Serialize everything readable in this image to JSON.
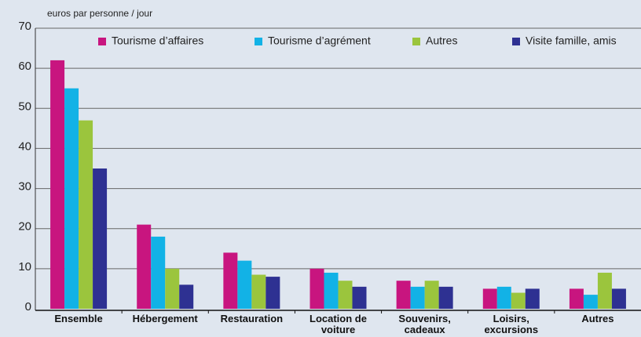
{
  "chart_data": {
    "type": "bar",
    "y_axis_label": "euros par personne / jour",
    "categories": [
      "Ensemble",
      "Hébergement",
      "Restauration",
      "Location de voiture",
      "Souvenirs, cadeaux",
      "Loisirs, excursions",
      "Autres"
    ],
    "series": [
      {
        "name": "Tourisme d’affaires",
        "color": "#c8157f",
        "values": [
          62,
          21,
          14,
          10,
          7,
          5,
          5
        ]
      },
      {
        "name": "Tourisme d’agrément",
        "color": "#12b2e6",
        "values": [
          55,
          18,
          12,
          9,
          5.5,
          5.5,
          3.5
        ]
      },
      {
        "name": "Autres",
        "color": "#9bc53d",
        "values": [
          47,
          10,
          8.5,
          7,
          7,
          4,
          9
        ]
      },
      {
        "name": "Visite famille, amis",
        "color": "#2e3192",
        "values": [
          35,
          6,
          8,
          5.5,
          5.5,
          5,
          5
        ]
      }
    ],
    "ylim": [
      0,
      70
    ],
    "yticks": [
      0,
      10,
      20,
      30,
      40,
      50,
      60,
      70
    ],
    "grid": true
  }
}
